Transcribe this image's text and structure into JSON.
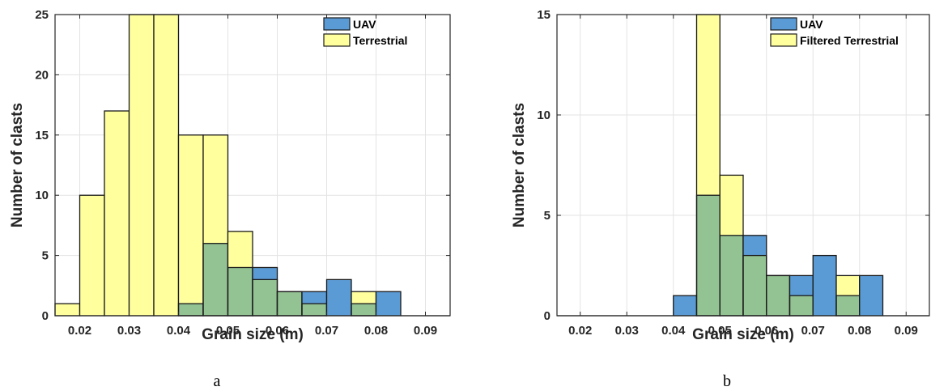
{
  "colors": {
    "uav": "#5b9bd5",
    "terrestrial": "#ffff9e",
    "overlap": "#93c293",
    "grid": "#e3e3e3",
    "axis": "#262626"
  },
  "chart_data": [
    {
      "type": "bar",
      "panel_label": "a",
      "xlabel": "Grain size (m)",
      "ylabel": "Number of clasts",
      "xlim": [
        0.015,
        0.095
      ],
      "ylim": [
        0,
        25
      ],
      "x_ticks": [
        "0.02",
        "0.03",
        "0.04",
        "0.05",
        "0.06",
        "0.07",
        "0.08",
        "0.09"
      ],
      "y_ticks": [
        "0",
        "5",
        "10",
        "15",
        "20",
        "25"
      ],
      "grid": true,
      "legend_position": "top-right",
      "bin_edges": [
        0.015,
        0.02,
        0.025,
        0.03,
        0.035,
        0.04,
        0.045,
        0.05,
        0.055,
        0.06,
        0.065,
        0.07,
        0.075,
        0.08,
        0.085,
        0.09,
        0.095
      ],
      "series": [
        {
          "name": "UAV",
          "values": [
            0,
            0,
            0,
            0,
            0,
            1,
            6,
            4,
            4,
            2,
            2,
            3,
            1,
            2,
            0,
            0
          ]
        },
        {
          "name": "Terrestrial",
          "values": [
            1,
            10,
            17,
            25,
            25,
            15,
            15,
            7,
            3,
            2,
            1,
            0,
            2,
            0,
            0,
            0
          ]
        }
      ]
    },
    {
      "type": "bar",
      "panel_label": "b",
      "xlabel": "Grain size (m)",
      "ylabel": "Number of clasts",
      "xlim": [
        0.015,
        0.095
      ],
      "ylim": [
        0,
        15
      ],
      "x_ticks": [
        "0.02",
        "0.03",
        "0.04",
        "0.05",
        "0.06",
        "0.07",
        "0.08",
        "0.09"
      ],
      "y_ticks": [
        "0",
        "5",
        "10",
        "15"
      ],
      "grid": true,
      "legend_position": "top-right",
      "bin_edges": [
        0.015,
        0.02,
        0.025,
        0.03,
        0.035,
        0.04,
        0.045,
        0.05,
        0.055,
        0.06,
        0.065,
        0.07,
        0.075,
        0.08,
        0.085,
        0.09,
        0.095
      ],
      "series": [
        {
          "name": "UAV",
          "values": [
            0,
            0,
            0,
            0,
            0,
            1,
            6,
            4,
            4,
            2,
            2,
            3,
            1,
            2,
            0,
            0
          ]
        },
        {
          "name": "Filtered Terrestrial",
          "values": [
            0,
            0,
            0,
            0,
            0,
            0,
            15,
            7,
            3,
            2,
            1,
            0,
            2,
            0,
            0,
            0
          ]
        }
      ]
    }
  ]
}
